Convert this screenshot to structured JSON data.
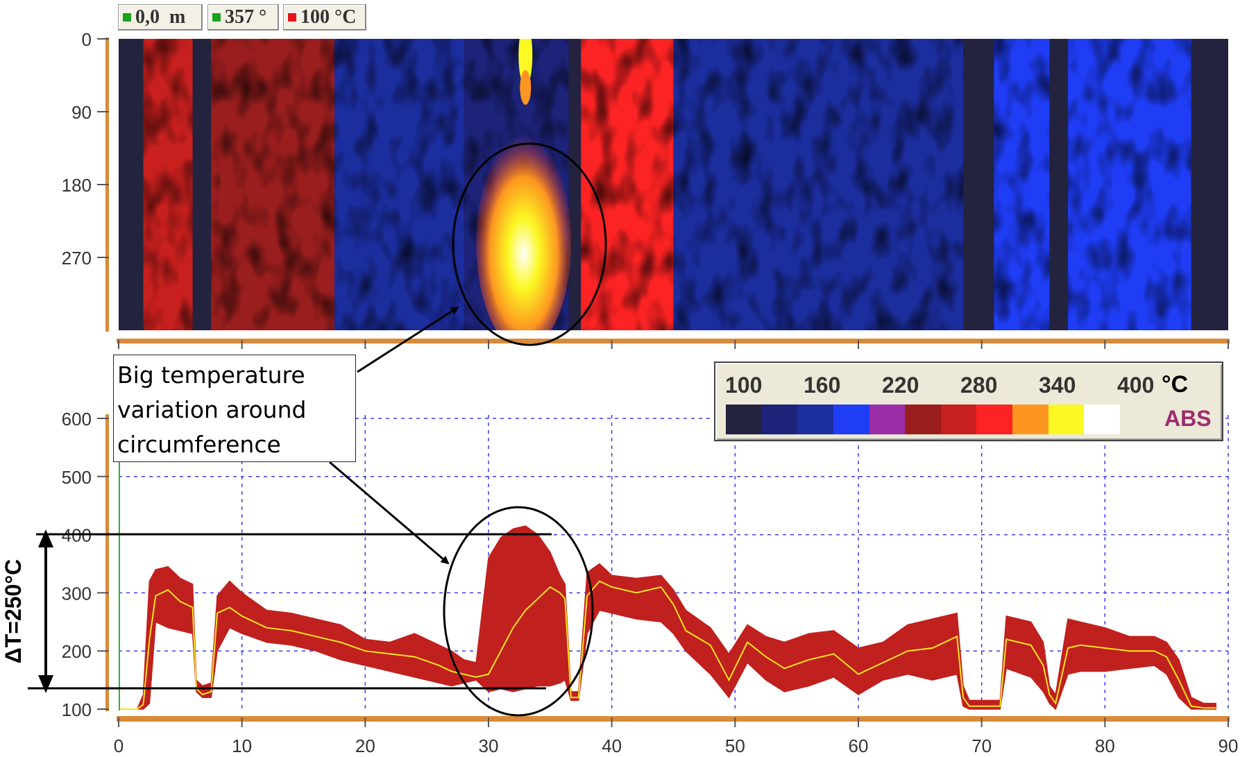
{
  "toolbar": {
    "position": "0,0  m",
    "angle": "357 °",
    "temperature": "100 °C",
    "colors": {
      "position": "#1aa31a",
      "angle": "#1aa31a",
      "temperature": "#e8141c"
    }
  },
  "legend": {
    "values": [
      "100",
      "160",
      "220",
      "280",
      "340",
      "400"
    ],
    "unit": "°C",
    "mode": "ABS",
    "colors": [
      "#23233f",
      "#1c2378",
      "#1c2d9e",
      "#1f3df5",
      "#9b2fa8",
      "#9a1e1e",
      "#c8201e",
      "#fb2323",
      "#fd9620",
      "#fbf823",
      "#ffffff"
    ]
  },
  "annotation": {
    "callout": [
      "Big temperature",
      "variation around",
      "circumference"
    ],
    "delta_label": "ΔT=250°C"
  },
  "chart_data": [
    {
      "type": "heatmap",
      "y_ticks": [
        "0",
        "90",
        "180",
        "270"
      ],
      "x_range": [
        0,
        90
      ],
      "y_range": [
        0,
        360
      ],
      "bands": [
        {
          "x": [
            0,
            2
          ],
          "value": 100
        },
        {
          "x": [
            2,
            6
          ],
          "value": 290
        },
        {
          "x": [
            6,
            7.5
          ],
          "value": 100
        },
        {
          "x": [
            7.5,
            17.5
          ],
          "value": 240
        },
        {
          "x": [
            17.5,
            28
          ],
          "value": 170
        },
        {
          "x": [
            28,
            36.5
          ],
          "value": 140
        },
        {
          "x": [
            36.5,
            37.5
          ],
          "value": 100
        },
        {
          "x": [
            37.5,
            45
          ],
          "value": 300
        },
        {
          "x": [
            45,
            68.5
          ],
          "value": 170
        },
        {
          "x": [
            68.5,
            71
          ],
          "value": 100
        },
        {
          "x": [
            71,
            75.5
          ],
          "value": 200
        },
        {
          "x": [
            75.5,
            77
          ],
          "value": 100
        },
        {
          "x": [
            77,
            87
          ],
          "value": 190
        },
        {
          "x": [
            87,
            90
          ],
          "value": 100
        }
      ],
      "hotspot": {
        "x": [
          29,
          36
        ],
        "y": [
          120,
          360
        ],
        "max": 400
      }
    },
    {
      "type": "area",
      "xlabel": "",
      "ylabel": "",
      "xlim": [
        0,
        90
      ],
      "ylim": [
        100,
        600
      ],
      "x_ticks": [
        0,
        10,
        20,
        30,
        40,
        50,
        60,
        70,
        80,
        90
      ],
      "y_ticks": [
        100,
        200,
        300,
        400,
        500,
        600
      ],
      "grid": true,
      "series": [
        {
          "color": "#c0201e",
          "x": [
            0,
            1.5,
            2,
            2.5,
            3,
            4,
            5,
            6,
            6.3,
            6.8,
            7.5,
            8,
            9,
            10,
            12,
            14,
            16,
            18,
            20,
            22,
            24,
            26,
            27,
            28,
            29,
            30,
            31,
            32,
            33,
            34,
            35,
            35.8,
            36.2,
            36.7,
            37.3,
            38,
            39,
            40,
            42,
            44,
            45,
            46,
            48,
            49.5,
            51,
            52.5,
            54,
            56,
            58,
            60,
            62,
            64,
            66,
            68,
            68.5,
            69,
            70,
            71,
            71.5,
            72,
            74,
            75,
            75.5,
            76,
            77,
            78,
            80,
            82,
            84,
            85,
            86,
            87,
            88,
            89
          ],
          "low": [
            100,
            100,
            100,
            110,
            250,
            240,
            235,
            230,
            130,
            120,
            120,
            200,
            240,
            230,
            215,
            210,
            200,
            185,
            175,
            165,
            155,
            145,
            140,
            145,
            150,
            130,
            135,
            130,
            135,
            140,
            140,
            145,
            150,
            115,
            115,
            230,
            270,
            265,
            255,
            250,
            230,
            200,
            160,
            120,
            180,
            150,
            130,
            140,
            155,
            125,
            150,
            160,
            150,
            160,
            105,
            100,
            100,
            100,
            100,
            170,
            155,
            130,
            110,
            100,
            160,
            165,
            165,
            170,
            175,
            160,
            120,
            100,
            100,
            100
          ],
          "high": [
            100,
            100,
            125,
            320,
            340,
            345,
            325,
            315,
            150,
            140,
            145,
            295,
            320,
            300,
            270,
            265,
            255,
            245,
            220,
            215,
            230,
            210,
            200,
            185,
            180,
            360,
            395,
            410,
            415,
            400,
            370,
            330,
            315,
            130,
            130,
            335,
            350,
            330,
            325,
            330,
            305,
            270,
            240,
            195,
            245,
            225,
            215,
            230,
            235,
            205,
            215,
            245,
            255,
            265,
            140,
            115,
            115,
            115,
            115,
            260,
            250,
            215,
            140,
            125,
            255,
            250,
            240,
            225,
            225,
            215,
            185,
            120,
            110,
            110
          ]
        },
        {
          "color": "#f5e61e",
          "x": [
            0,
            1.5,
            2,
            2.5,
            3,
            4,
            5,
            6,
            6.3,
            6.8,
            7.5,
            8,
            9,
            10,
            12,
            14,
            16,
            18,
            20,
            22,
            24,
            26,
            27,
            28,
            29,
            30,
            31,
            32,
            33,
            34,
            35,
            35.8,
            36.2,
            36.7,
            37.3,
            38,
            39,
            40,
            42,
            44,
            45,
            46,
            48,
            49.5,
            51,
            52.5,
            54,
            56,
            58,
            60,
            62,
            64,
            66,
            68,
            68.5,
            69,
            70,
            71,
            71.5,
            72,
            74,
            75,
            75.5,
            76,
            77,
            78,
            80,
            82,
            84,
            85,
            86,
            87,
            88,
            89
          ],
          "values": [
            100,
            100,
            108,
            220,
            295,
            305,
            285,
            275,
            135,
            125,
            130,
            265,
            275,
            260,
            240,
            235,
            225,
            215,
            200,
            195,
            190,
            175,
            165,
            160,
            155,
            160,
            200,
            240,
            270,
            290,
            310,
            300,
            290,
            120,
            120,
            295,
            320,
            310,
            300,
            310,
            280,
            235,
            210,
            150,
            215,
            190,
            170,
            185,
            195,
            160,
            180,
            200,
            205,
            225,
            120,
            105,
            105,
            105,
            105,
            220,
            210,
            175,
            125,
            110,
            205,
            210,
            205,
            200,
            200,
            190,
            150,
            105,
            102,
            102
          ]
        }
      ]
    }
  ]
}
